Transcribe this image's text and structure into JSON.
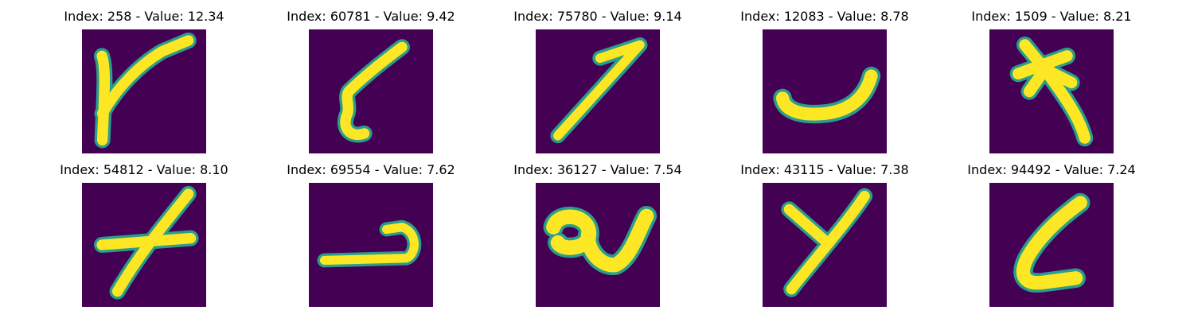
{
  "colors": {
    "background": "#440154",
    "stroke_edge": "#2a9d8c",
    "stroke_core": "#fde725"
  },
  "panels": [
    {
      "title": "Index: 258 - Value: 12.34"
    },
    {
      "title": "Index: 60781 - Value: 9.42"
    },
    {
      "title": "Index: 75780 - Value: 9.14"
    },
    {
      "title": "Index: 12083 - Value: 8.78"
    },
    {
      "title": "Index: 1509 - Value: 8.21"
    },
    {
      "title": "Index: 54812 - Value: 8.10"
    },
    {
      "title": "Index: 69554 - Value: 7.62"
    },
    {
      "title": "Index: 36127 - Value: 7.54"
    },
    {
      "title": "Index: 43115 - Value: 7.38"
    },
    {
      "title": "Index: 94492 - Value: 7.24"
    }
  ]
}
